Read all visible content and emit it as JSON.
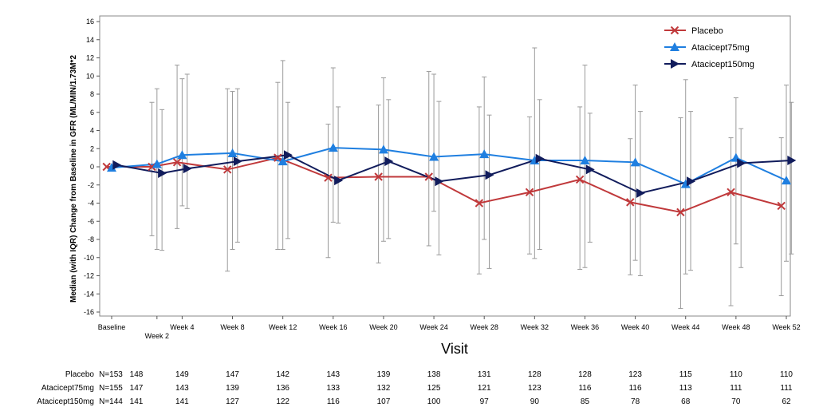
{
  "chart_data": {
    "type": "line",
    "xlabel": "Visit",
    "ylabel": "Median  (with IQR) Change from Baseline in GFR (ML/MIN/1.73M*2",
    "ylim": [
      -16,
      16
    ],
    "y_ticks": [
      16,
      14,
      12,
      10,
      8,
      6,
      4,
      2,
      0,
      -2,
      -4,
      -6,
      -8,
      -10,
      -12,
      -14,
      -16
    ],
    "visits": [
      {
        "label": "Baseline",
        "week": -1.6
      },
      {
        "label": "Week 2",
        "week": 2
      },
      {
        "label": "Week 4",
        "week": 4
      },
      {
        "label": "Week 8",
        "week": 8
      },
      {
        "label": "Week 12",
        "week": 12
      },
      {
        "label": "Week 16",
        "week": 16
      },
      {
        "label": "Week 20",
        "week": 20
      },
      {
        "label": "Week 24",
        "week": 24
      },
      {
        "label": "Week 28",
        "week": 28
      },
      {
        "label": "Week 32",
        "week": 32
      },
      {
        "label": "Week 36",
        "week": 36
      },
      {
        "label": "Week 40",
        "week": 40
      },
      {
        "label": "Week 44",
        "week": 44
      },
      {
        "label": "Week 48",
        "week": 48
      },
      {
        "label": "Week 52",
        "week": 52
      }
    ],
    "legend_position": "top-right",
    "grid": false,
    "series": [
      {
        "name": "Placebo",
        "color": "#c0393b",
        "marker": "x",
        "x_offset": -0.4,
        "median": [
          0,
          0,
          0.5,
          -0.3,
          1.0,
          -1.2,
          -1.1,
          -1.1,
          -4.0,
          -2.8,
          -1.4,
          -3.9,
          -5.0,
          -2.8,
          -4.3
        ],
        "q1": [
          0,
          -7.6,
          -6.8,
          -11.5,
          -9.1,
          -10.0,
          -10.6,
          -8.7,
          -11.8,
          -9.6,
          -11.3,
          -11.9,
          -15.6,
          -15.3,
          -14.2
        ],
        "q3": [
          0,
          7.1,
          11.2,
          8.6,
          9.3,
          4.7,
          6.8,
          10.5,
          6.6,
          5.5,
          6.6,
          3.1,
          5.4,
          3.2,
          3.2
        ]
      },
      {
        "name": "Atacicept75mg",
        "color": "#1f7fe0",
        "marker": "triangle",
        "x_offset": 0,
        "median": [
          -0.1,
          0.3,
          1.3,
          1.5,
          0.6,
          2.1,
          1.9,
          1.1,
          1.4,
          0.7,
          0.7,
          0.5,
          -1.9,
          1.0,
          -1.5
        ],
        "q1": [
          0,
          -9.1,
          -4.3,
          -9.1,
          -9.1,
          -6.1,
          -8.2,
          -4.9,
          -8.0,
          -10.1,
          -11.1,
          -10.3,
          -11.8,
          -8.5,
          -10.4
        ],
        "q3": [
          0,
          8.6,
          9.7,
          8.3,
          11.7,
          10.9,
          9.8,
          10.2,
          9.9,
          13.1,
          11.2,
          9.0,
          9.6,
          7.6,
          9.0
        ]
      },
      {
        "name": "Atacicept150mg",
        "color": "#111c5c",
        "marker": "arrow",
        "x_offset": 0.4,
        "median": [
          0.2,
          -0.7,
          -0.2,
          0.6,
          1.3,
          -1.5,
          0.6,
          -1.6,
          -0.9,
          0.9,
          -0.3,
          -2.9,
          -1.6,
          0.4,
          0.7
        ],
        "q1": [
          0,
          -9.2,
          -4.6,
          -8.3,
          -7.9,
          -6.2,
          -7.9,
          -9.7,
          -11.2,
          -9.1,
          -8.3,
          -12.0,
          -11.4,
          -11.1,
          -9.6
        ],
        "q3": [
          0,
          6.3,
          10.2,
          8.6,
          7.1,
          6.6,
          7.4,
          7.2,
          5.7,
          7.4,
          5.9,
          6.1,
          6.1,
          4.2,
          7.1
        ]
      }
    ],
    "n_table": {
      "rows": [
        {
          "label": "Placebo",
          "first": "N=153",
          "values": [
            "148",
            "149",
            "147",
            "142",
            "143",
            "139",
            "138",
            "131",
            "128",
            "128",
            "123",
            "115",
            "110",
            "110"
          ]
        },
        {
          "label": "Atacicept75mg",
          "first": "N=155",
          "values": [
            "147",
            "143",
            "139",
            "136",
            "133",
            "132",
            "125",
            "121",
            "123",
            "116",
            "116",
            "113",
            "111",
            "111"
          ]
        },
        {
          "label": "Atacicept150mg",
          "first": "N=144",
          "values": [
            "141",
            "141",
            "127",
            "122",
            "116",
            "107",
            "100",
            "97",
            "90",
            "85",
            "78",
            "68",
            "70",
            "62"
          ]
        }
      ]
    }
  }
}
